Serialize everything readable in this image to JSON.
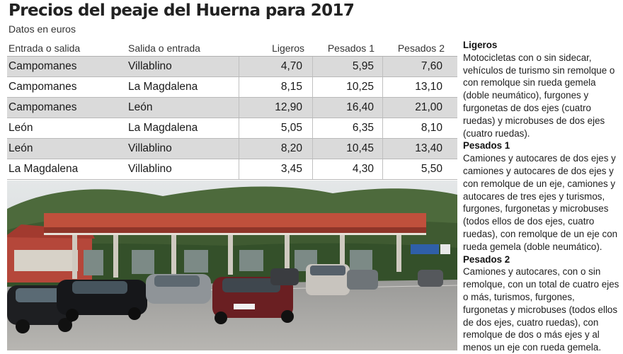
{
  "header": {
    "title": "Precios del peaje del Huerna para 2017",
    "subtitle": "Datos en euros"
  },
  "table": {
    "columns": [
      "Entrada o salida",
      "Salida o entrada",
      "Ligeros",
      "Pesados 1",
      "Pesados 2"
    ],
    "rows": [
      [
        "Campomanes",
        "Villablino",
        "4,70",
        "5,95",
        "7,60"
      ],
      [
        "Campomanes",
        "La Magdalena",
        "8,15",
        "10,25",
        "13,10"
      ],
      [
        "Campomanes",
        "León",
        "12,90",
        "16,40",
        "21,00"
      ],
      [
        "León",
        "La Magdalena",
        "5,05",
        "6,35",
        "8,10"
      ],
      [
        "León",
        "Villablino",
        "8,20",
        "10,45",
        "13,40"
      ],
      [
        "La Magdalena",
        "Villablino",
        "3,45",
        "4,30",
        "5,50"
      ]
    ]
  },
  "sidebar": {
    "sections": [
      {
        "heading": "Ligeros",
        "text": "Motocicletas con o sin sidecar, vehículos de turismo sin remolque o con remolque sin rueda gemela (doble neumático), furgones y furgonetas de dos ejes (cuatro ruedas) y microbuses de dos ejes (cuatro ruedas)."
      },
      {
        "heading": "Pesados 1",
        "text": "Camiones y autocares de dos ejes y camiones y autocares de dos ejes y con remolque de un eje, camiones y autocares de tres ejes y turismos, furgones, furgonetas y microbuses (todos ellos de dos ejes, cuatro ruedas), con remolque de un eje con rueda gemela (doble neumático)."
      },
      {
        "heading": "Pesados 2",
        "text": "Camiones y autocares, con o sin remolque, con un total de cuatro ejes o más, turismos, furgones, furgonetas y microbuses (todos ellos de dos ejes, cuatro ruedas), con remolque de dos o más ejes y al menos un eje con rueda gemela."
      }
    ]
  },
  "colors": {
    "row_shade": "#dadada",
    "canopy": "#c0503c",
    "sky": "#d8dde0"
  }
}
